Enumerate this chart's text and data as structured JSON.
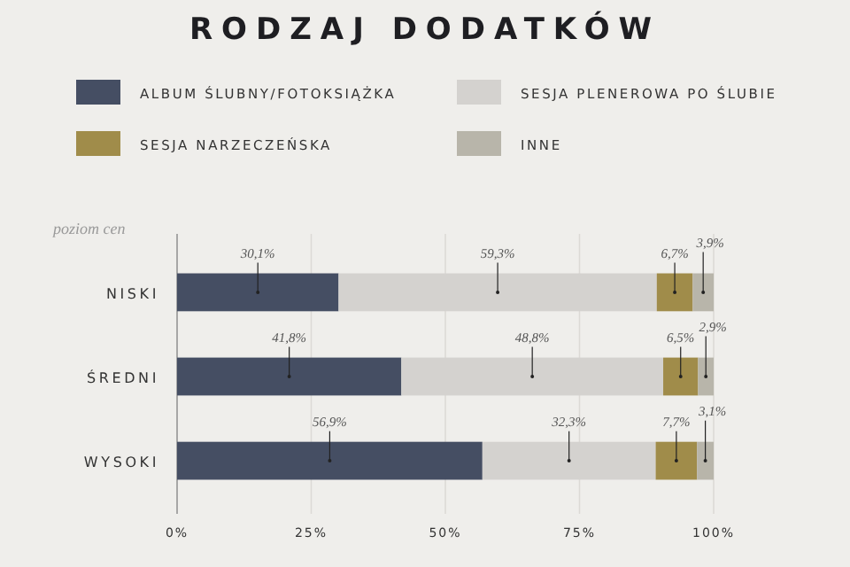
{
  "chart_data": {
    "type": "bar",
    "orientation": "horizontal",
    "stacked": true,
    "title": "RODZAJ DODATKÓW",
    "ylabel": "poziom cen",
    "categories": [
      "NISKI",
      "ŚREDNI",
      "WYSOKI"
    ],
    "series": [
      {
        "name": "ALBUM ŚLUBNY/FOTOKSIĄŻKA",
        "color": "#454e63",
        "values": [
          30.1,
          41.8,
          56.9
        ],
        "value_labels": [
          "30,1%",
          "41,8%",
          "56,9%"
        ]
      },
      {
        "name": "SESJA PLENEROWA PO ŚLUBIE",
        "color": "#d4d2cf",
        "values": [
          59.3,
          48.8,
          32.3
        ],
        "value_labels": [
          "59,3%",
          "48,8%",
          "32,3%"
        ]
      },
      {
        "name": "SESJA NARZECZEŃSKA",
        "color": "#a08c4a",
        "values": [
          6.7,
          6.5,
          7.7
        ],
        "value_labels": [
          "6,7%",
          "6,5%",
          "7,7%"
        ]
      },
      {
        "name": "INNE",
        "color": "#b8b5aa",
        "values": [
          3.9,
          2.9,
          3.1
        ],
        "value_labels": [
          "3,9%",
          "2,9%",
          "3,1%"
        ]
      }
    ],
    "xlim": [
      0,
      100
    ],
    "xticks": [
      {
        "value": 0,
        "label": "0%"
      },
      {
        "value": 25,
        "label": "25%"
      },
      {
        "value": 50,
        "label": "50%"
      },
      {
        "value": 75,
        "label": "75%"
      },
      {
        "value": 100,
        "label": "100%"
      }
    ],
    "grid": "x",
    "legend": "top"
  }
}
